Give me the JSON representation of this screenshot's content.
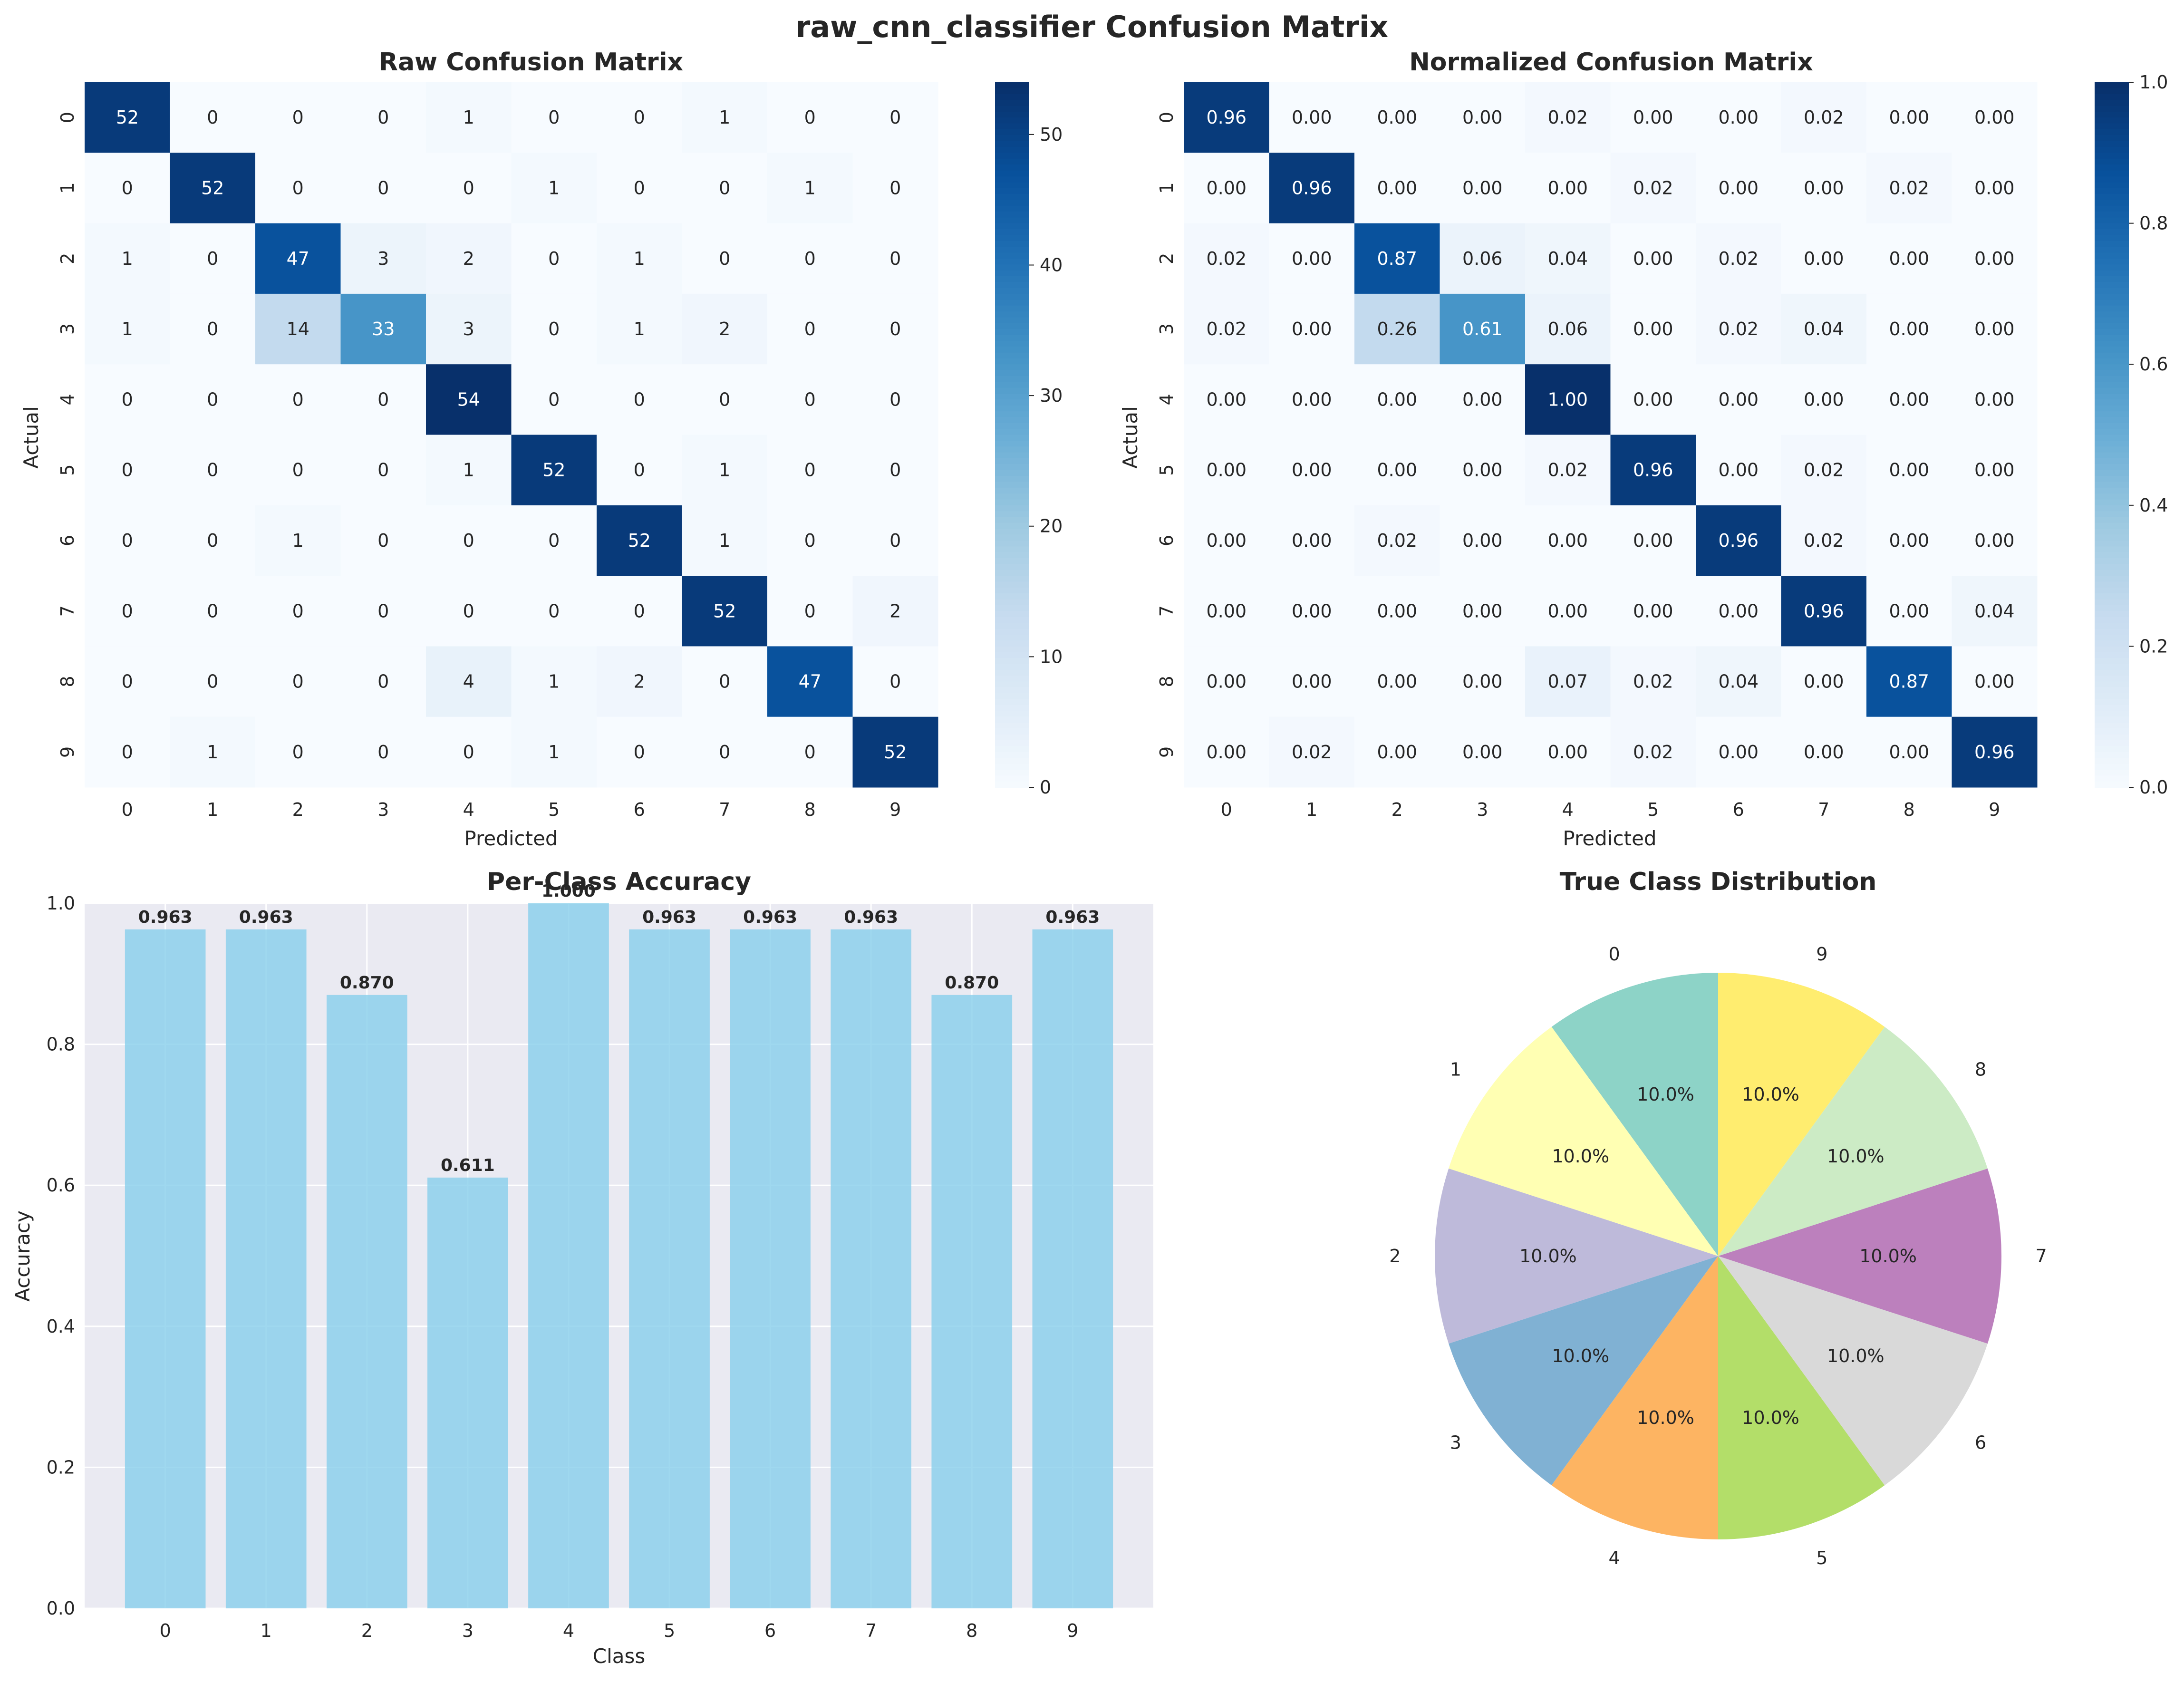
{
  "figure": {
    "title": "raw_cnn_classifier Confusion Matrix"
  },
  "chart_data": [
    {
      "type": "heatmap",
      "title": "Raw Confusion Matrix",
      "xlabel": "Predicted",
      "ylabel": "Actual",
      "x_categories": [
        "0",
        "1",
        "2",
        "3",
        "4",
        "5",
        "6",
        "7",
        "8",
        "9"
      ],
      "y_categories": [
        "0",
        "1",
        "2",
        "3",
        "4",
        "5",
        "6",
        "7",
        "8",
        "9"
      ],
      "colormap": "Blues",
      "vmin": 0,
      "vmax": 54,
      "colorbar_ticks": [
        0,
        10,
        20,
        30,
        40,
        50
      ],
      "value_format": "int",
      "values": [
        [
          52,
          0,
          0,
          0,
          1,
          0,
          0,
          1,
          0,
          0
        ],
        [
          0,
          52,
          0,
          0,
          0,
          1,
          0,
          0,
          1,
          0
        ],
        [
          1,
          0,
          47,
          3,
          2,
          0,
          1,
          0,
          0,
          0
        ],
        [
          1,
          0,
          14,
          33,
          3,
          0,
          1,
          2,
          0,
          0
        ],
        [
          0,
          0,
          0,
          0,
          54,
          0,
          0,
          0,
          0,
          0
        ],
        [
          0,
          0,
          0,
          0,
          1,
          52,
          0,
          1,
          0,
          0
        ],
        [
          0,
          0,
          1,
          0,
          0,
          0,
          52,
          1,
          0,
          0
        ],
        [
          0,
          0,
          0,
          0,
          0,
          0,
          0,
          52,
          0,
          2
        ],
        [
          0,
          0,
          0,
          0,
          4,
          1,
          2,
          0,
          47,
          0
        ],
        [
          0,
          1,
          0,
          0,
          0,
          1,
          0,
          0,
          0,
          52
        ]
      ]
    },
    {
      "type": "heatmap",
      "title": "Normalized Confusion Matrix",
      "xlabel": "Predicted",
      "ylabel": "Actual",
      "x_categories": [
        "0",
        "1",
        "2",
        "3",
        "4",
        "5",
        "6",
        "7",
        "8",
        "9"
      ],
      "y_categories": [
        "0",
        "1",
        "2",
        "3",
        "4",
        "5",
        "6",
        "7",
        "8",
        "9"
      ],
      "colormap": "Blues",
      "vmin": 0,
      "vmax": 1,
      "colorbar_ticks": [
        0.0,
        0.2,
        0.4,
        0.6,
        0.8,
        1.0
      ],
      "value_format": "2f",
      "values": [
        [
          0.96,
          0.0,
          0.0,
          0.0,
          0.02,
          0.0,
          0.0,
          0.02,
          0.0,
          0.0
        ],
        [
          0.0,
          0.96,
          0.0,
          0.0,
          0.0,
          0.02,
          0.0,
          0.0,
          0.02,
          0.0
        ],
        [
          0.02,
          0.0,
          0.87,
          0.06,
          0.04,
          0.0,
          0.02,
          0.0,
          0.0,
          0.0
        ],
        [
          0.02,
          0.0,
          0.26,
          0.61,
          0.06,
          0.0,
          0.02,
          0.04,
          0.0,
          0.0
        ],
        [
          0.0,
          0.0,
          0.0,
          0.0,
          1.0,
          0.0,
          0.0,
          0.0,
          0.0,
          0.0
        ],
        [
          0.0,
          0.0,
          0.0,
          0.0,
          0.02,
          0.96,
          0.0,
          0.02,
          0.0,
          0.0
        ],
        [
          0.0,
          0.0,
          0.02,
          0.0,
          0.0,
          0.0,
          0.96,
          0.02,
          0.0,
          0.0
        ],
        [
          0.0,
          0.0,
          0.0,
          0.0,
          0.0,
          0.0,
          0.0,
          0.96,
          0.0,
          0.04
        ],
        [
          0.0,
          0.0,
          0.0,
          0.0,
          0.07,
          0.02,
          0.04,
          0.0,
          0.87,
          0.0
        ],
        [
          0.0,
          0.02,
          0.0,
          0.0,
          0.0,
          0.02,
          0.0,
          0.0,
          0.0,
          0.96
        ]
      ]
    },
    {
      "type": "bar",
      "title": "Per-Class Accuracy",
      "xlabel": "Class",
      "ylabel": "Accuracy",
      "categories": [
        "0",
        "1",
        "2",
        "3",
        "4",
        "5",
        "6",
        "7",
        "8",
        "9"
      ],
      "values": [
        0.963,
        0.963,
        0.87,
        0.611,
        1.0,
        0.963,
        0.963,
        0.963,
        0.87,
        0.963
      ],
      "value_labels": [
        "0.963",
        "0.963",
        "0.870",
        "0.611",
        "1.000",
        "0.963",
        "0.963",
        "0.963",
        "0.870",
        "0.963"
      ],
      "ylim": [
        0,
        1.0
      ],
      "yticks": [
        "0.0",
        "0.2",
        "0.4",
        "0.6",
        "0.8",
        "1.0"
      ],
      "grid": true,
      "bar_color": "#87ceeb"
    },
    {
      "type": "pie",
      "title": "True Class Distribution",
      "labels": [
        "0",
        "1",
        "2",
        "3",
        "4",
        "5",
        "6",
        "7",
        "8",
        "9"
      ],
      "values": [
        10,
        10,
        10,
        10,
        10,
        10,
        10,
        10,
        10,
        10
      ],
      "pct_labels": [
        "10.0%",
        "10.0%",
        "10.0%",
        "10.0%",
        "10.0%",
        "10.0%",
        "10.0%",
        "10.0%",
        "10.0%",
        "10.0%"
      ],
      "colors": [
        "#8dd3c7",
        "#ffffb3",
        "#bebada",
        "#80b1d3",
        "#fdb462",
        "#b3de69",
        "#d9d9d9",
        "#bc80bd",
        "#ccebc5",
        "#ffed6f"
      ],
      "start_angle": 90,
      "direction": "counterclockwise"
    }
  ]
}
